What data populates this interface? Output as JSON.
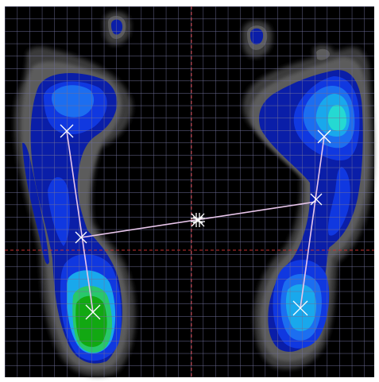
{
  "viewer": {
    "background_color": "#000000",
    "frame_color": "#ffffff",
    "grid_color": "#6f6f9a",
    "crosshair_color": "#c83030",
    "marker_color": "#ffffff",
    "line_color": "#e7c5ea",
    "pressure_palette": [
      "#3a3a3a",
      "#5c5c5c",
      "#0a1ea8",
      "#1038e0",
      "#1c6ef0",
      "#19a8ec",
      "#25d9d2",
      "#28c86a",
      "#12a812"
    ],
    "center_marker_icon": "center-of-pressure-icon",
    "landmark_marker_icon": "x-cross-icon"
  }
}
